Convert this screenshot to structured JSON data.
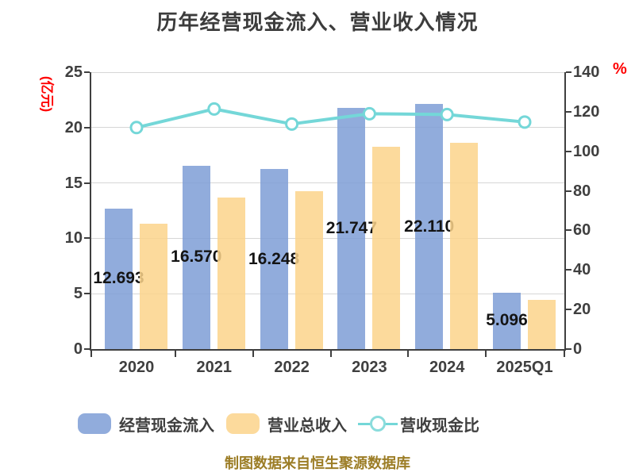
{
  "title": "历年经营现金流入、营业收入情况",
  "footer": "制图数据来自恒生聚源数据库",
  "colors": {
    "bar_cash": "#7E9DD6",
    "bar_revenue": "#FBD38B",
    "line": "#74D7D8",
    "marker_fill": "#FFFFFF",
    "text": "#3F3F3F",
    "value_label": "#141414",
    "grid": "#D6D6D6",
    "axis": "#3F3F3F",
    "unit_red": "#FF0000",
    "footer_text": "#9C7D26"
  },
  "chart_data": {
    "type": "bar",
    "subtype": "grouped-bars-with-line",
    "title": "历年经营现金流入、营业收入情况",
    "categories": [
      "2020",
      "2021",
      "2022",
      "2023",
      "2024",
      "2025Q1"
    ],
    "series": [
      {
        "name": "经营现金流入",
        "type": "bar",
        "axis": "left",
        "color": "#7E9DD6",
        "values": [
          12.693,
          16.57,
          16.248,
          21.747,
          22.11,
          5.096
        ],
        "labels": [
          "12.693",
          "16.570",
          "16.248",
          "21.747",
          "22.110",
          "5.096"
        ]
      },
      {
        "name": "营业总收入",
        "type": "bar",
        "axis": "left",
        "color": "#FBD38B",
        "values": [
          11.33,
          13.65,
          14.28,
          18.27,
          18.64,
          4.44
        ]
      },
      {
        "name": "营收现金比",
        "type": "line",
        "axis": "right",
        "color": "#74D7D8",
        "values": [
          112.0,
          121.4,
          113.8,
          119.0,
          118.6,
          114.8
        ]
      }
    ],
    "left_axis": {
      "unit": "(亿元)",
      "min": 0,
      "max": 25,
      "ticks": [
        0,
        5,
        10,
        15,
        20,
        25
      ]
    },
    "right_axis": {
      "unit": "%",
      "min": 0,
      "max": 140,
      "ticks": [
        0,
        20,
        40,
        60,
        80,
        100,
        120,
        140
      ]
    },
    "grid": true,
    "legend_position": "bottom",
    "source_note": "制图数据来自恒生聚源数据库"
  }
}
